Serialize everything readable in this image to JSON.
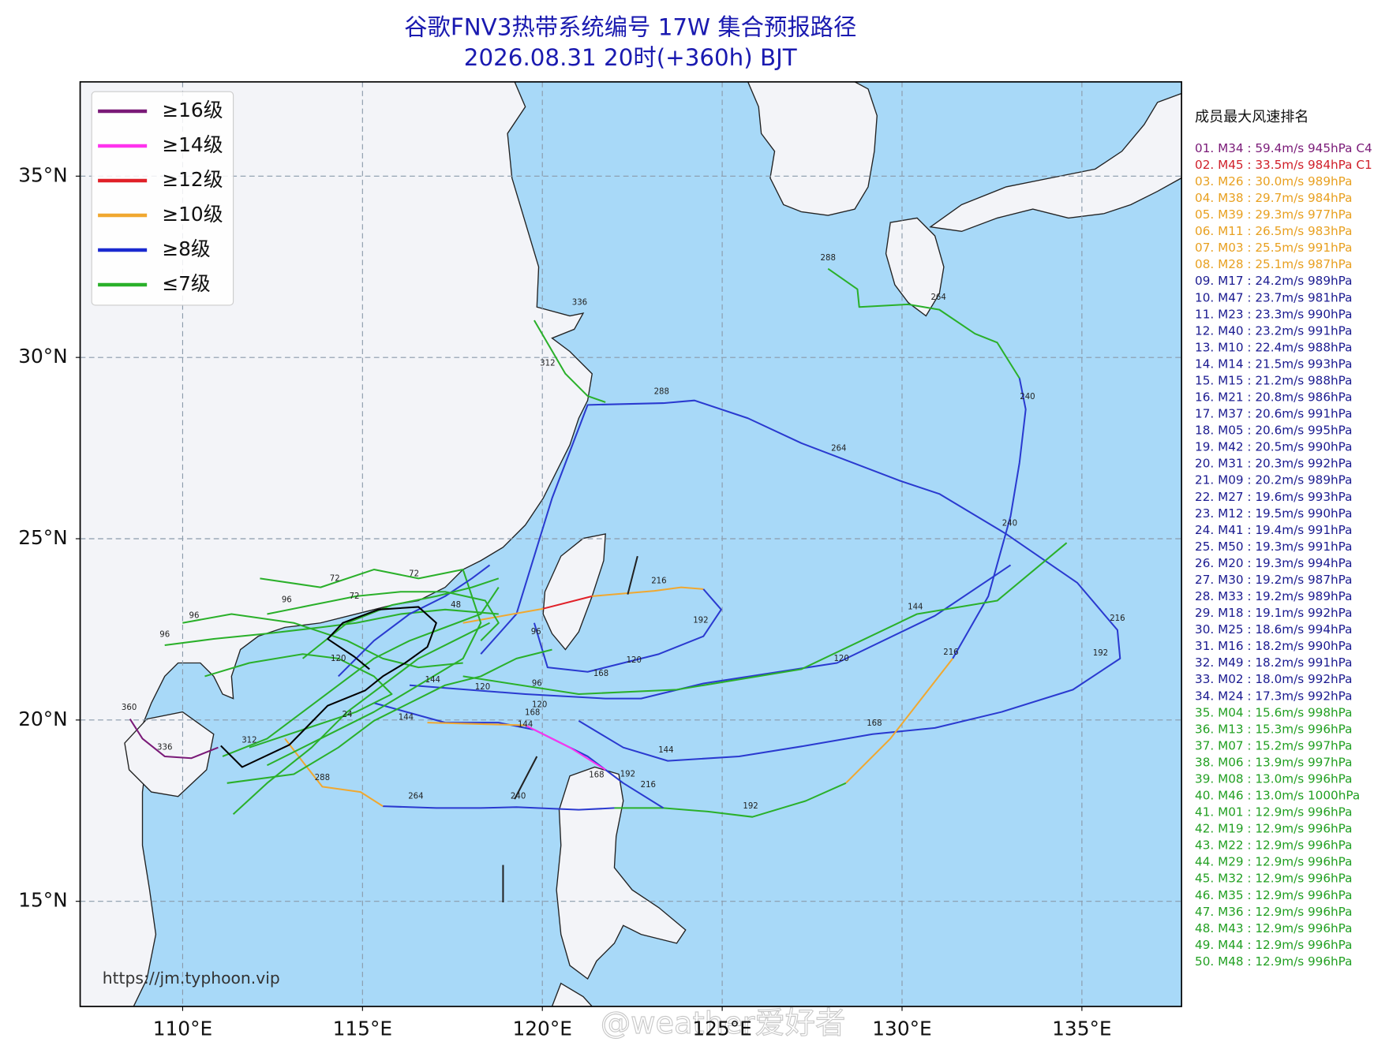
{
  "title": "谷歌FNV3热带系统编号 17W 集合预报路径",
  "subtitle": "2026.08.31 20时(+360h) BJT",
  "map": {
    "lon_range": [
      107.15,
      137.77
    ],
    "lat_range": [
      12.1,
      37.6
    ],
    "lon_ticks": [
      {
        "value": 110,
        "label": "110°E"
      },
      {
        "value": 115,
        "label": "115°E"
      },
      {
        "value": 120,
        "label": "120°E"
      },
      {
        "value": 125,
        "label": "125°E"
      },
      {
        "value": 130,
        "label": "130°E"
      },
      {
        "value": 135,
        "label": "135°E"
      }
    ],
    "lat_ticks": [
      {
        "value": 15,
        "label": "15°N"
      },
      {
        "value": 20,
        "label": "20°N"
      },
      {
        "value": 25,
        "label": "25°N"
      },
      {
        "value": 30,
        "label": "30°N"
      },
      {
        "value": 35,
        "label": "35°N"
      }
    ],
    "grid": true,
    "ocean_color": "#a8d9f8"
  },
  "legend": [
    {
      "label": "≥16级",
      "color": "#7a1a78"
    },
    {
      "label": "≥14级",
      "color": "#ff33ee"
    },
    {
      "label": "≥12级",
      "color": "#e02028"
    },
    {
      "label": "≥10级",
      "color": "#f0a830"
    },
    {
      "label": "≥8级",
      "color": "#1a2ad0"
    },
    {
      "label": "≤7级",
      "color": "#2ab02a"
    }
  ],
  "ranking": {
    "title": "成员最大风速排名",
    "items": [
      {
        "text": "01. M34 : 59.4m/s 945hPa C4",
        "color": "#7a1a78"
      },
      {
        "text": "02. M45 : 33.5m/s 984hPa C1",
        "color": "#d0202a"
      },
      {
        "text": "03. M26 : 30.0m/s 989hPa",
        "color": "#e8a020"
      },
      {
        "text": "04. M38 : 29.7m/s 984hPa",
        "color": "#e8a020"
      },
      {
        "text": "05. M39 : 29.3m/s 977hPa",
        "color": "#e8a020"
      },
      {
        "text": "06. M11 : 26.5m/s 983hPa",
        "color": "#e8a020"
      },
      {
        "text": "07. M03 : 25.5m/s 991hPa",
        "color": "#e8a020"
      },
      {
        "text": "08. M28 : 25.1m/s 987hPa",
        "color": "#e8a020"
      },
      {
        "text": "09. M17 : 24.2m/s 989hPa",
        "color": "#1a1a90"
      },
      {
        "text": "10. M47 : 23.7m/s 981hPa",
        "color": "#1a1a90"
      },
      {
        "text": "11. M23 : 23.3m/s 990hPa",
        "color": "#1a1a90"
      },
      {
        "text": "12. M40 : 23.2m/s 991hPa",
        "color": "#1a1a90"
      },
      {
        "text": "13. M10 : 22.4m/s 988hPa",
        "color": "#1a1a90"
      },
      {
        "text": "14. M14 : 21.5m/s 993hPa",
        "color": "#1a1a90"
      },
      {
        "text": "15. M15 : 21.2m/s 988hPa",
        "color": "#1a1a90"
      },
      {
        "text": "16. M21 : 20.8m/s 986hPa",
        "color": "#1a1a90"
      },
      {
        "text": "17. M37 : 20.6m/s 991hPa",
        "color": "#1a1a90"
      },
      {
        "text": "18. M05 : 20.6m/s 995hPa",
        "color": "#1a1a90"
      },
      {
        "text": "19. M42 : 20.5m/s 990hPa",
        "color": "#1a1a90"
      },
      {
        "text": "20. M31 : 20.3m/s 992hPa",
        "color": "#1a1a90"
      },
      {
        "text": "21. M09 : 20.2m/s 989hPa",
        "color": "#1a1a90"
      },
      {
        "text": "22. M27 : 19.6m/s 993hPa",
        "color": "#1a1a90"
      },
      {
        "text": "23. M12 : 19.5m/s 990hPa",
        "color": "#1a1a90"
      },
      {
        "text": "24. M41 : 19.4m/s 991hPa",
        "color": "#1a1a90"
      },
      {
        "text": "25. M50 : 19.3m/s 991hPa",
        "color": "#1a1a90"
      },
      {
        "text": "26. M20 : 19.3m/s 994hPa",
        "color": "#1a1a90"
      },
      {
        "text": "27. M30 : 19.2m/s 987hPa",
        "color": "#1a1a90"
      },
      {
        "text": "28. M33 : 19.2m/s 989hPa",
        "color": "#1a1a90"
      },
      {
        "text": "29. M18 : 19.1m/s 992hPa",
        "color": "#1a1a90"
      },
      {
        "text": "30. M25 : 18.6m/s 994hPa",
        "color": "#1a1a90"
      },
      {
        "text": "31. M16 : 18.2m/s 990hPa",
        "color": "#1a1a90"
      },
      {
        "text": "32. M49 : 18.2m/s 991hPa",
        "color": "#1a1a90"
      },
      {
        "text": "33. M02 : 18.0m/s 992hPa",
        "color": "#1a1a90"
      },
      {
        "text": "34. M24 : 17.3m/s 992hPa",
        "color": "#1a1a90"
      },
      {
        "text": "35. M04 : 15.6m/s 998hPa",
        "color": "#22a022"
      },
      {
        "text": "36. M13 : 15.3m/s 996hPa",
        "color": "#22a022"
      },
      {
        "text": "37. M07 : 15.2m/s 997hPa",
        "color": "#22a022"
      },
      {
        "text": "38. M06 : 13.9m/s 997hPa",
        "color": "#22a022"
      },
      {
        "text": "39. M08 : 13.0m/s 996hPa",
        "color": "#22a022"
      },
      {
        "text": "40. M46 : 13.0m/s 1000hPa",
        "color": "#22a022"
      },
      {
        "text": "41. M01 : 12.9m/s 996hPa",
        "color": "#22a022"
      },
      {
        "text": "42. M19 : 12.9m/s 996hPa",
        "color": "#22a022"
      },
      {
        "text": "43. M22 : 12.9m/s 996hPa",
        "color": "#22a022"
      },
      {
        "text": "44. M29 : 12.9m/s 996hPa",
        "color": "#22a022"
      },
      {
        "text": "45. M32 : 12.9m/s 996hPa",
        "color": "#22a022"
      },
      {
        "text": "46. M35 : 12.9m/s 996hPa",
        "color": "#22a022"
      },
      {
        "text": "47. M36 : 12.9m/s 996hPa",
        "color": "#22a022"
      },
      {
        "text": "48. M43 : 12.9m/s 996hPa",
        "color": "#22a022"
      },
      {
        "text": "49. M44 : 12.9m/s 996hPa",
        "color": "#22a022"
      },
      {
        "text": "50. M48 : 12.9m/s 996hPa",
        "color": "#22a022"
      }
    ]
  },
  "track_labels": [
    "360",
    "336",
    "312",
    "312",
    "288",
    "288",
    "288",
    "264",
    "264",
    "264",
    "240",
    "240",
    "240",
    "216",
    "216",
    "216",
    "216",
    "192",
    "192",
    "192",
    "192",
    "168",
    "168",
    "168",
    "168",
    "144",
    "144",
    "144",
    "144",
    "144",
    "120",
    "120",
    "120",
    "120",
    "120",
    "96",
    "96",
    "96",
    "96",
    "96",
    "72",
    "72",
    "72",
    "48",
    "24",
    "336"
  ],
  "source": "https://jm.typhoon.vip",
  "watermark": "@weather爱好者"
}
